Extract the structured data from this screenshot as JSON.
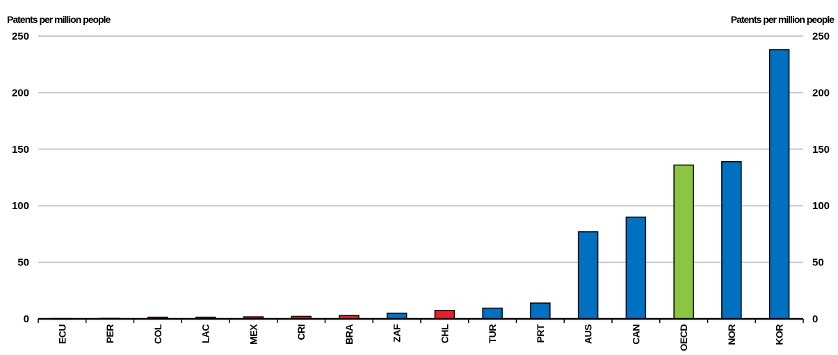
{
  "chart_data": {
    "type": "bar",
    "ylabel_left": "Patents per million people",
    "ylabel_right": "Patents per million people",
    "ylim": [
      0,
      250
    ],
    "yticks": [
      0,
      50,
      100,
      150,
      200,
      250
    ],
    "grid": true,
    "legend": "none",
    "categories": [
      "ECU",
      "PER",
      "COL",
      "LAC",
      "MEX",
      "CRI",
      "BRA",
      "ZAF",
      "CHL",
      "TUR",
      "PRT",
      "AUS",
      "CAN",
      "OECD",
      "NOR",
      "KOR"
    ],
    "values": [
      0.3,
      0.5,
      1.5,
      1.5,
      1.8,
      2.2,
      3.0,
      5.0,
      7.5,
      9.5,
      14.0,
      77.0,
      90.0,
      136.0,
      139.0,
      238.0
    ],
    "bar_colors": [
      "#0070c0",
      "#0070c0",
      "#e3202c",
      "#0070c0",
      "#e3202c",
      "#e3202c",
      "#e3202c",
      "#0070c0",
      "#e3202c",
      "#0070c0",
      "#0070c0",
      "#0070c0",
      "#0070c0",
      "#8cc540",
      "#0070c0",
      "#0070c0"
    ]
  }
}
